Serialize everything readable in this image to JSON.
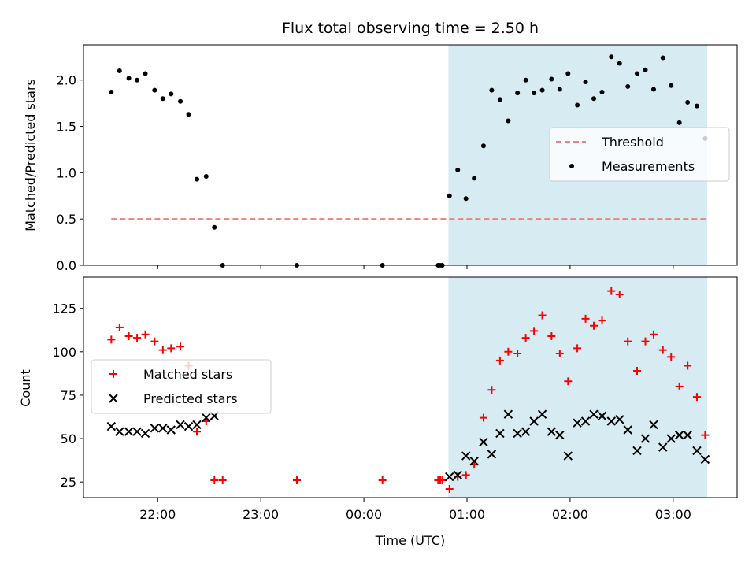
{
  "chart_data": {
    "title": "Flux total observing time = 2.50 h",
    "xlabel": "Time (UTC)",
    "x_unit": "hours UTC (values beyond 24 are after midnight of the next day)",
    "xlim": [
      21.28,
      27.62
    ],
    "xticks": [
      {
        "value": 22,
        "label": "22:00"
      },
      {
        "value": 23,
        "label": "23:00"
      },
      {
        "value": 24,
        "label": "00:00"
      },
      {
        "value": 25,
        "label": "01:00"
      },
      {
        "value": 26,
        "label": "02:00"
      },
      {
        "value": 27,
        "label": "03:00"
      }
    ],
    "observing_window": {
      "start": 24.82,
      "end": 27.33,
      "color": "#add8e6"
    },
    "panels": [
      {
        "type": "scatter",
        "ylabel": "Matched/Predicted stars",
        "ylim": [
          0,
          2.38
        ],
        "yticks": [
          "0.0",
          "0.5",
          "1.0",
          "1.5",
          "2.0"
        ],
        "threshold": {
          "name": "Threshold",
          "value": 0.5,
          "x_range": [
            21.55,
            27.33
          ],
          "color": "#f08080"
        },
        "legend": {
          "position": "right",
          "entries": [
            "Threshold",
            "Measurements"
          ]
        },
        "series": [
          {
            "name": "Measurements",
            "color": "#000000",
            "marker": "dot",
            "x": [
              21.55,
              21.63,
              21.72,
              21.8,
              21.88,
              21.97,
              22.05,
              22.13,
              22.22,
              22.3,
              22.38,
              22.47,
              22.55,
              22.63,
              23.35,
              24.18,
              24.72,
              24.74,
              24.76,
              24.83,
              24.91,
              24.99,
              25.07,
              25.16,
              25.24,
              25.32,
              25.4,
              25.49,
              25.57,
              25.65,
              25.73,
              25.82,
              25.9,
              25.98,
              26.07,
              26.15,
              26.23,
              26.31,
              26.4,
              26.48,
              26.56,
              26.65,
              26.73,
              26.81,
              26.9,
              26.98,
              27.06,
              27.14,
              27.23,
              27.31
            ],
            "y": [
              1.87,
              2.1,
              2.02,
              2.0,
              2.07,
              1.89,
              1.8,
              1.85,
              1.77,
              1.63,
              0.93,
              0.96,
              0.41,
              0.0,
              0.0,
              0.0,
              0.0,
              0.0,
              0.0,
              0.75,
              1.03,
              0.72,
              0.94,
              1.29,
              1.89,
              1.79,
              1.56,
              1.86,
              2.0,
              1.86,
              1.89,
              2.01,
              1.9,
              2.07,
              1.73,
              1.98,
              1.8,
              1.87,
              2.25,
              2.18,
              1.93,
              2.07,
              2.11,
              1.9,
              2.24,
              1.94,
              1.54,
              1.76,
              1.72,
              1.37
            ]
          }
        ]
      },
      {
        "type": "scatter",
        "ylabel": "Count",
        "ylim": [
          16,
          143
        ],
        "yticks": [
          "25",
          "50",
          "75",
          "100",
          "125"
        ],
        "legend": {
          "position": "left",
          "entries": [
            "Matched stars",
            "Predicted stars"
          ]
        },
        "series": [
          {
            "name": "Matched stars",
            "color": "#ff0000",
            "marker": "plus",
            "x": [
              21.55,
              21.63,
              21.72,
              21.8,
              21.88,
              21.97,
              22.05,
              22.13,
              22.22,
              22.3,
              22.38,
              22.47,
              22.55,
              22.63,
              23.35,
              24.18,
              24.72,
              24.74,
              24.76,
              24.83,
              24.91,
              24.99,
              25.07,
              25.16,
              25.24,
              25.32,
              25.4,
              25.49,
              25.57,
              25.65,
              25.73,
              25.82,
              25.9,
              25.98,
              26.07,
              26.15,
              26.23,
              26.31,
              26.4,
              26.48,
              26.56,
              26.65,
              26.73,
              26.81,
              26.9,
              26.98,
              27.06,
              27.14,
              27.23,
              27.31
            ],
            "y": [
              107,
              114,
              109,
              108,
              110,
              106,
              101,
              102,
              103,
              92,
              54,
              60,
              26,
              26,
              26,
              26,
              26,
              26,
              26,
              21,
              28,
              29,
              35,
              62,
              78,
              95,
              100,
              99,
              108,
              112,
              121,
              109,
              99,
              83,
              102,
              119,
              115,
              118,
              135,
              133,
              106,
              89,
              106,
              110,
              101,
              97,
              80,
              92,
              74,
              52
            ]
          },
          {
            "name": "Predicted stars",
            "color": "#000000",
            "marker": "x",
            "x": [
              21.55,
              21.63,
              21.72,
              21.8,
              21.88,
              21.97,
              22.05,
              22.13,
              22.22,
              22.3,
              22.38,
              22.47,
              22.55,
              24.83,
              24.91,
              24.99,
              25.07,
              25.16,
              25.24,
              25.32,
              25.4,
              25.49,
              25.57,
              25.65,
              25.73,
              25.82,
              25.9,
              25.98,
              26.07,
              26.15,
              26.23,
              26.31,
              26.4,
              26.48,
              26.56,
              26.65,
              26.73,
              26.81,
              26.9,
              26.98,
              27.06,
              27.14,
              27.23,
              27.31
            ],
            "y": [
              57,
              54,
              54,
              54,
              53,
              56,
              56,
              55,
              58,
              57,
              58,
              62,
              63,
              28,
              29,
              40,
              37,
              48,
              41,
              53,
              64,
              53,
              54,
              60,
              64,
              54,
              52,
              40,
              59,
              60,
              64,
              63,
              60,
              61,
              55,
              43,
              50,
              58,
              45,
              50,
              52,
              52,
              43,
              38
            ]
          }
        ]
      }
    ]
  }
}
